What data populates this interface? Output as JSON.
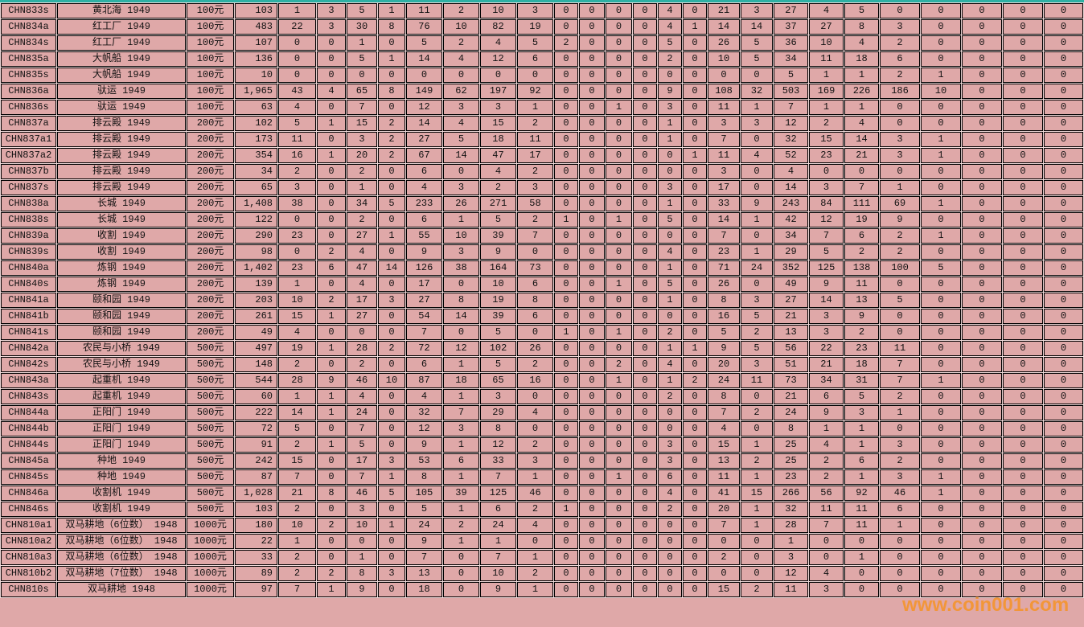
{
  "page": {
    "watermark_text": "www.coin001.com",
    "colors": {
      "background_pink": "#dfa8a8",
      "grid_gap_light": "#efd9d9",
      "top_border_teal": "#2eb0a4",
      "cell_border": "#000000",
      "text": "#111111",
      "watermark_orange": "#f79321"
    }
  },
  "table": {
    "rows": [
      {
        "catalog": "CHN833s",
        "name": "黄北海 1949",
        "denomination": "100元",
        "values": [
          "103",
          1,
          3,
          5,
          1,
          11,
          2,
          10,
          3,
          0,
          0,
          0,
          0,
          4,
          0,
          21,
          3,
          27,
          4,
          5,
          0,
          0,
          0,
          0,
          0
        ]
      },
      {
        "catalog": "CHN834a",
        "name": "红工厂 1949",
        "denomination": "100元",
        "values": [
          "483",
          22,
          3,
          30,
          8,
          76,
          10,
          82,
          19,
          0,
          0,
          0,
          0,
          4,
          1,
          14,
          14,
          37,
          27,
          8,
          3,
          0,
          0,
          0,
          0
        ]
      },
      {
        "catalog": "CHN834s",
        "name": "红工厂 1949",
        "denomination": "100元",
        "values": [
          "107",
          0,
          0,
          1,
          0,
          5,
          2,
          4,
          5,
          2,
          0,
          0,
          0,
          5,
          0,
          26,
          5,
          36,
          10,
          4,
          2,
          0,
          0,
          0,
          0
        ]
      },
      {
        "catalog": "CHN835a",
        "name": "大帆船 1949",
        "denomination": "100元",
        "values": [
          "136",
          0,
          0,
          5,
          1,
          14,
          4,
          12,
          6,
          0,
          0,
          0,
          0,
          2,
          0,
          10,
          5,
          34,
          11,
          18,
          6,
          0,
          0,
          0,
          0
        ]
      },
      {
        "catalog": "CHN835s",
        "name": "大帆船 1949",
        "denomination": "100元",
        "values": [
          "10",
          0,
          0,
          0,
          0,
          0,
          0,
          0,
          0,
          0,
          0,
          0,
          0,
          0,
          0,
          0,
          0,
          5,
          1,
          1,
          2,
          1,
          0,
          0,
          0
        ]
      },
      {
        "catalog": "CHN836a",
        "name": "驮运 1949",
        "denomination": "100元",
        "values": [
          "1,965",
          43,
          4,
          65,
          8,
          149,
          62,
          197,
          92,
          0,
          0,
          0,
          0,
          9,
          0,
          108,
          32,
          503,
          169,
          226,
          186,
          10,
          0,
          0,
          0
        ]
      },
      {
        "catalog": "CHN836s",
        "name": "驮运 1949",
        "denomination": "100元",
        "values": [
          "63",
          4,
          0,
          7,
          0,
          12,
          3,
          3,
          1,
          0,
          0,
          1,
          0,
          3,
          0,
          11,
          1,
          7,
          1,
          1,
          0,
          0,
          0,
          0,
          0
        ]
      },
      {
        "catalog": "CHN837a",
        "name": "排云殿 1949",
        "denomination": "200元",
        "values": [
          "102",
          5,
          1,
          15,
          2,
          14,
          4,
          15,
          2,
          0,
          0,
          0,
          0,
          1,
          0,
          3,
          3,
          12,
          2,
          4,
          0,
          0,
          0,
          0,
          0
        ]
      },
      {
        "catalog": "CHN837a1",
        "name": "排云殿 1949",
        "denomination": "200元",
        "values": [
          "173",
          11,
          0,
          3,
          2,
          27,
          5,
          18,
          11,
          0,
          0,
          0,
          0,
          1,
          0,
          7,
          0,
          32,
          15,
          14,
          3,
          1,
          0,
          0,
          0
        ]
      },
      {
        "catalog": "CHN837a2",
        "name": "排云殿 1949",
        "denomination": "200元",
        "values": [
          "354",
          16,
          1,
          20,
          2,
          67,
          14,
          47,
          17,
          0,
          0,
          0,
          0,
          0,
          1,
          11,
          4,
          52,
          23,
          21,
          3,
          1,
          0,
          0,
          0
        ]
      },
      {
        "catalog": "CHN837b",
        "name": "排云殿 1949",
        "denomination": "200元",
        "values": [
          "34",
          2,
          0,
          2,
          0,
          6,
          0,
          4,
          2,
          0,
          0,
          0,
          0,
          0,
          0,
          3,
          0,
          4,
          0,
          0,
          0,
          0,
          0,
          0,
          0
        ]
      },
      {
        "catalog": "CHN837s",
        "name": "排云殿 1949",
        "denomination": "200元",
        "values": [
          "65",
          3,
          0,
          1,
          0,
          4,
          3,
          2,
          3,
          0,
          0,
          0,
          0,
          3,
          0,
          17,
          0,
          14,
          3,
          7,
          1,
          0,
          0,
          0,
          0
        ]
      },
      {
        "catalog": "CHN838a",
        "name": "长城 1949",
        "denomination": "200元",
        "values": [
          "1,408",
          38,
          0,
          34,
          5,
          233,
          26,
          271,
          58,
          0,
          0,
          0,
          0,
          1,
          0,
          33,
          9,
          243,
          84,
          111,
          69,
          1,
          0,
          0,
          0
        ]
      },
      {
        "catalog": "CHN838s",
        "name": "长城 1949",
        "denomination": "200元",
        "values": [
          "122",
          0,
          0,
          2,
          0,
          6,
          1,
          5,
          2,
          1,
          0,
          1,
          0,
          5,
          0,
          14,
          1,
          42,
          12,
          19,
          9,
          0,
          0,
          0,
          0
        ]
      },
      {
        "catalog": "CHN839a",
        "name": "收割 1949",
        "denomination": "200元",
        "values": [
          "290",
          23,
          0,
          27,
          1,
          55,
          10,
          39,
          7,
          0,
          0,
          0,
          0,
          0,
          0,
          7,
          0,
          34,
          7,
          6,
          2,
          1,
          0,
          0,
          0
        ]
      },
      {
        "catalog": "CHN839s",
        "name": "收割 1949",
        "denomination": "200元",
        "values": [
          "98",
          0,
          2,
          4,
          0,
          9,
          3,
          9,
          0,
          0,
          0,
          0,
          0,
          4,
          0,
          23,
          1,
          29,
          5,
          2,
          2,
          0,
          0,
          0,
          0
        ]
      },
      {
        "catalog": "CHN840a",
        "name": "炼钢 1949",
        "denomination": "200元",
        "values": [
          "1,402",
          23,
          6,
          47,
          14,
          126,
          38,
          164,
          73,
          0,
          0,
          0,
          0,
          1,
          0,
          71,
          24,
          352,
          125,
          138,
          100,
          5,
          0,
          0,
          0
        ]
      },
      {
        "catalog": "CHN840s",
        "name": "炼钢 1949",
        "denomination": "200元",
        "values": [
          "139",
          1,
          0,
          4,
          0,
          17,
          0,
          10,
          6,
          0,
          0,
          1,
          0,
          5,
          0,
          26,
          0,
          49,
          9,
          11,
          0,
          0,
          0,
          0,
          0
        ]
      },
      {
        "catalog": "CHN841a",
        "name": "颐和园 1949",
        "denomination": "200元",
        "values": [
          "203",
          10,
          2,
          17,
          3,
          27,
          8,
          19,
          8,
          0,
          0,
          0,
          0,
          1,
          0,
          8,
          3,
          27,
          14,
          13,
          5,
          0,
          0,
          0,
          0
        ]
      },
      {
        "catalog": "CHN841b",
        "name": "颐和园 1949",
        "denomination": "200元",
        "values": [
          "261",
          15,
          1,
          27,
          0,
          54,
          14,
          39,
          6,
          0,
          0,
          0,
          0,
          0,
          0,
          16,
          5,
          21,
          3,
          9,
          0,
          0,
          0,
          0,
          0
        ]
      },
      {
        "catalog": "CHN841s",
        "name": "颐和园 1949",
        "denomination": "200元",
        "values": [
          "49",
          4,
          0,
          0,
          0,
          7,
          0,
          5,
          0,
          1,
          0,
          1,
          0,
          2,
          0,
          5,
          2,
          13,
          3,
          2,
          0,
          0,
          0,
          0,
          0
        ]
      },
      {
        "catalog": "CHN842a",
        "name": "农民与小桥 1949",
        "denomination": "500元",
        "values": [
          "497",
          19,
          1,
          28,
          2,
          72,
          12,
          102,
          26,
          0,
          0,
          0,
          0,
          1,
          1,
          9,
          5,
          56,
          22,
          23,
          11,
          0,
          0,
          0,
          0
        ]
      },
      {
        "catalog": "CHN842s",
        "name": "农民与小桥 1949",
        "denomination": "500元",
        "values": [
          "148",
          2,
          0,
          2,
          0,
          6,
          1,
          5,
          2,
          0,
          0,
          2,
          0,
          4,
          0,
          20,
          3,
          51,
          21,
          18,
          7,
          0,
          0,
          0,
          0
        ]
      },
      {
        "catalog": "CHN843a",
        "name": "起重机 1949",
        "denomination": "500元",
        "values": [
          "544",
          28,
          9,
          46,
          10,
          87,
          18,
          65,
          16,
          0,
          0,
          1,
          0,
          1,
          2,
          24,
          11,
          73,
          34,
          31,
          7,
          1,
          0,
          0,
          0
        ]
      },
      {
        "catalog": "CHN843s",
        "name": "起重机 1949",
        "denomination": "500元",
        "values": [
          "60",
          1,
          1,
          4,
          0,
          4,
          1,
          3,
          0,
          0,
          0,
          0,
          0,
          2,
          0,
          8,
          0,
          21,
          6,
          5,
          2,
          0,
          0,
          0,
          0
        ]
      },
      {
        "catalog": "CHN844a",
        "name": "正阳门 1949",
        "denomination": "500元",
        "values": [
          "222",
          14,
          1,
          24,
          0,
          32,
          7,
          29,
          4,
          0,
          0,
          0,
          0,
          0,
          0,
          7,
          2,
          24,
          9,
          3,
          1,
          0,
          0,
          0,
          0
        ]
      },
      {
        "catalog": "CHN844b",
        "name": "正阳门 1949",
        "denomination": "500元",
        "values": [
          "72",
          5,
          0,
          7,
          0,
          12,
          3,
          8,
          0,
          0,
          0,
          0,
          0,
          0,
          0,
          4,
          0,
          8,
          1,
          1,
          0,
          0,
          0,
          0,
          0
        ]
      },
      {
        "catalog": "CHN844s",
        "name": "正阳门 1949",
        "denomination": "500元",
        "values": [
          "91",
          2,
          1,
          5,
          0,
          9,
          1,
          12,
          2,
          0,
          0,
          0,
          0,
          3,
          0,
          15,
          1,
          25,
          4,
          1,
          3,
          0,
          0,
          0,
          0
        ]
      },
      {
        "catalog": "CHN845a",
        "name": "种地 1949",
        "denomination": "500元",
        "values": [
          "242",
          15,
          0,
          17,
          3,
          53,
          6,
          33,
          3,
          0,
          0,
          0,
          0,
          3,
          0,
          13,
          2,
          25,
          2,
          6,
          2,
          0,
          0,
          0,
          0
        ]
      },
      {
        "catalog": "CHN845s",
        "name": "种地 1949",
        "denomination": "500元",
        "values": [
          "87",
          7,
          0,
          7,
          1,
          8,
          1,
          7,
          1,
          0,
          0,
          1,
          0,
          6,
          0,
          11,
          1,
          23,
          2,
          1,
          3,
          1,
          0,
          0,
          0
        ]
      },
      {
        "catalog": "CHN846a",
        "name": "收割机 1949",
        "denomination": "500元",
        "values": [
          "1,028",
          21,
          8,
          46,
          5,
          105,
          39,
          125,
          46,
          0,
          0,
          0,
          0,
          4,
          0,
          41,
          15,
          266,
          56,
          92,
          46,
          1,
          0,
          0,
          0
        ]
      },
      {
        "catalog": "CHN846s",
        "name": "收割机 1949",
        "denomination": "500元",
        "values": [
          "103",
          2,
          0,
          3,
          0,
          5,
          1,
          6,
          2,
          1,
          0,
          0,
          0,
          2,
          0,
          20,
          1,
          32,
          11,
          11,
          6,
          0,
          0,
          0,
          0
        ]
      },
      {
        "catalog": "CHN810a1",
        "name": "双马耕地（6位数） 1948",
        "denomination": "1000元",
        "values": [
          "180",
          10,
          2,
          10,
          1,
          24,
          2,
          24,
          4,
          0,
          0,
          0,
          0,
          0,
          0,
          7,
          1,
          28,
          7,
          11,
          1,
          0,
          0,
          0,
          0
        ]
      },
      {
        "catalog": "CHN810a2",
        "name": "双马耕地（6位数） 1948",
        "denomination": "1000元",
        "values": [
          "22",
          1,
          0,
          0,
          0,
          9,
          1,
          1,
          0,
          0,
          0,
          0,
          0,
          0,
          0,
          0,
          0,
          1,
          0,
          0,
          0,
          0,
          0,
          0,
          0
        ]
      },
      {
        "catalog": "CHN810a3",
        "name": "双马耕地（6位数） 1948",
        "denomination": "1000元",
        "values": [
          "33",
          2,
          0,
          1,
          0,
          7,
          0,
          7,
          1,
          0,
          0,
          0,
          0,
          0,
          0,
          2,
          0,
          3,
          0,
          1,
          0,
          0,
          0,
          0,
          0
        ]
      },
      {
        "catalog": "CHN810b2",
        "name": "双马耕地（7位数） 1948",
        "denomination": "1000元",
        "values": [
          "89",
          2,
          2,
          8,
          3,
          13,
          0,
          10,
          2,
          0,
          0,
          0,
          0,
          0,
          0,
          0,
          0,
          12,
          4,
          0,
          0,
          0,
          0,
          0,
          0
        ]
      },
      {
        "catalog": "CHN810s",
        "name": "双马耕地 1948",
        "denomination": "1000元",
        "values": [
          "97",
          7,
          1,
          9,
          0,
          18,
          0,
          9,
          1,
          0,
          0,
          0,
          0,
          0,
          0,
          15,
          2,
          11,
          3,
          0,
          0,
          0,
          0,
          0,
          0
        ]
      }
    ]
  }
}
